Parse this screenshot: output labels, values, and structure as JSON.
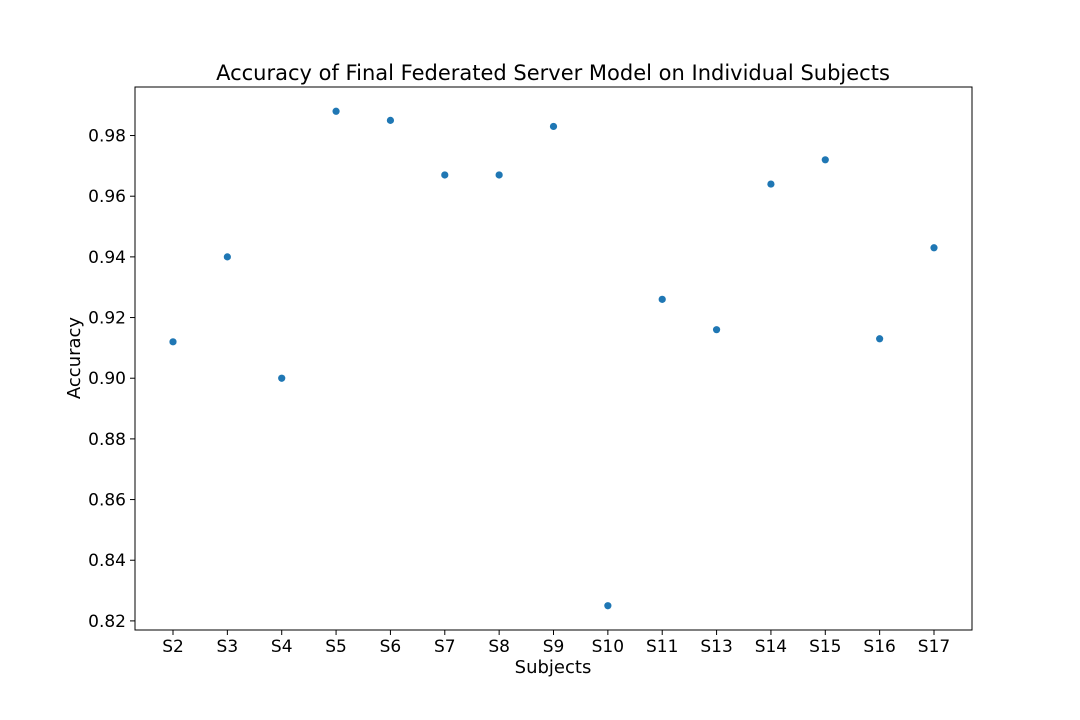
{
  "chart_data": {
    "type": "scatter",
    "title": "Accuracy of Final Federated Server Model on Individual Subjects",
    "xlabel": "Subjects",
    "ylabel": "Accuracy",
    "categories": [
      "S2",
      "S3",
      "S4",
      "S5",
      "S6",
      "S7",
      "S8",
      "S9",
      "S10",
      "S11",
      "S13",
      "S14",
      "S15",
      "S16",
      "S17"
    ],
    "values": [
      0.912,
      0.94,
      0.9,
      0.988,
      0.985,
      0.967,
      0.967,
      0.983,
      0.825,
      0.926,
      0.916,
      0.964,
      0.972,
      0.913,
      0.943
    ],
    "yticks": [
      "0.82",
      "0.84",
      "0.86",
      "0.88",
      "0.90",
      "0.92",
      "0.94",
      "0.96",
      "0.98"
    ],
    "ylim": [
      0.817,
      0.996
    ],
    "grid": false,
    "marker_color": "#1f77b4"
  }
}
